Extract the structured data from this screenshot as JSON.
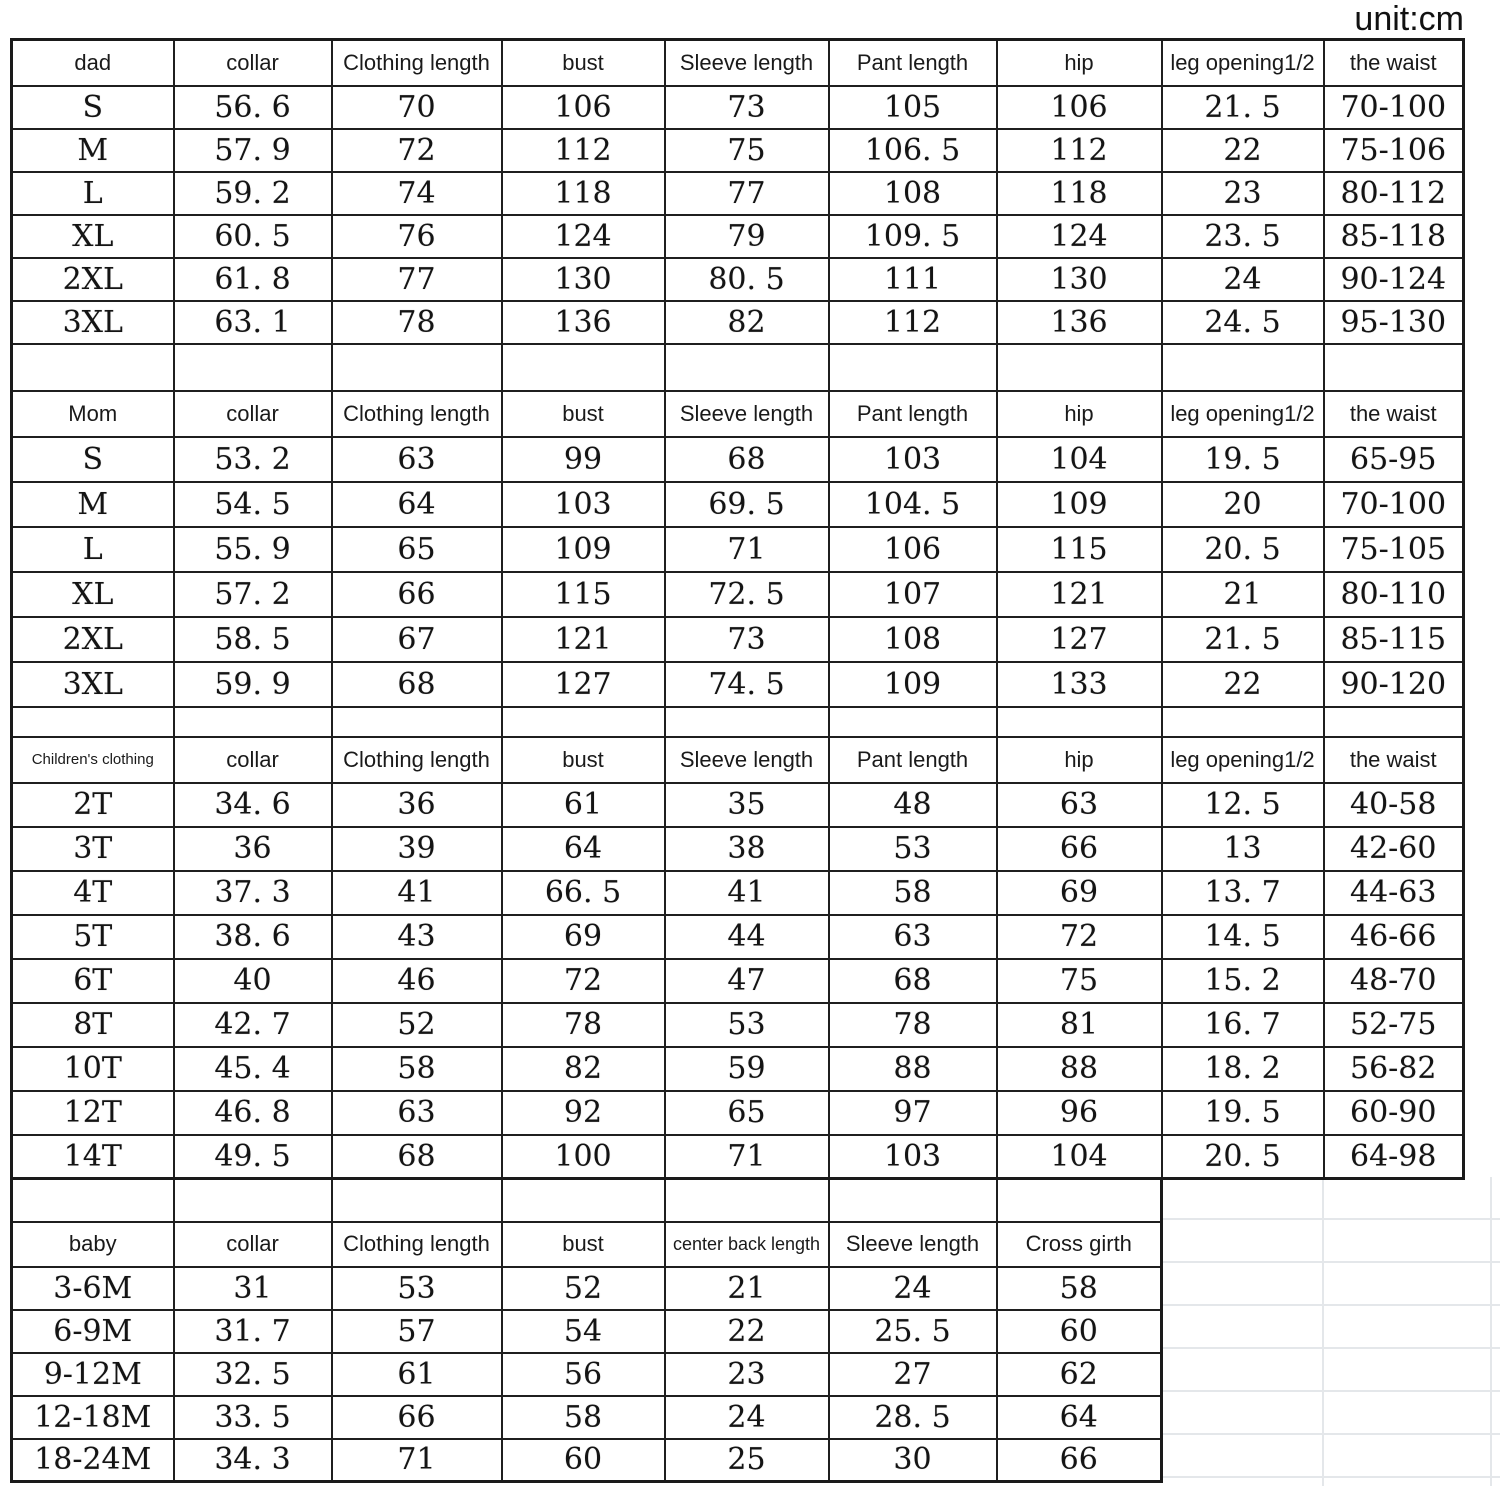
{
  "unit_label": "unit:cm",
  "chart_data": {
    "type": "table",
    "unit": "cm",
    "sections": [
      {
        "name": "dad",
        "columns": [
          "dad",
          "collar",
          "Clothing length",
          "bust",
          "Sleeve length",
          "Pant length",
          "hip",
          "leg opening1/2",
          "the waist"
        ],
        "rows": [
          [
            "S",
            "56. 6",
            "70",
            "106",
            "73",
            "105",
            "106",
            "21. 5",
            "70-100"
          ],
          [
            "M",
            "57. 9",
            "72",
            "112",
            "75",
            "106. 5",
            "112",
            "22",
            "75-106"
          ],
          [
            "L",
            "59. 2",
            "74",
            "118",
            "77",
            "108",
            "118",
            "23",
            "80-112"
          ],
          [
            "XL",
            "60. 5",
            "76",
            "124",
            "79",
            "109. 5",
            "124",
            "23. 5",
            "85-118"
          ],
          [
            "2XL",
            "61. 8",
            "77",
            "130",
            "80. 5",
            "111",
            "130",
            "24",
            "90-124"
          ],
          [
            "3XL",
            "63. 1",
            "78",
            "136",
            "82",
            "112",
            "136",
            "24. 5",
            "95-130"
          ]
        ]
      },
      {
        "name": "Mom",
        "columns": [
          "Mom",
          "collar",
          "Clothing length",
          "bust",
          "Sleeve length",
          "Pant length",
          "hip",
          "leg opening1/2",
          "the waist"
        ],
        "rows": [
          [
            "S",
            "53. 2",
            "63",
            "99",
            "68",
            "103",
            "104",
            "19. 5",
            "65-95"
          ],
          [
            "M",
            "54. 5",
            "64",
            "103",
            "69. 5",
            "104. 5",
            "109",
            "20",
            "70-100"
          ],
          [
            "L",
            "55. 9",
            "65",
            "109",
            "71",
            "106",
            "115",
            "20. 5",
            "75-105"
          ],
          [
            "XL",
            "57. 2",
            "66",
            "115",
            "72. 5",
            "107",
            "121",
            "21",
            "80-110"
          ],
          [
            "2XL",
            "58. 5",
            "67",
            "121",
            "73",
            "108",
            "127",
            "21. 5",
            "85-115"
          ],
          [
            "3XL",
            "59. 9",
            "68",
            "127",
            "74. 5",
            "109",
            "133",
            "22",
            "90-120"
          ]
        ]
      },
      {
        "name": "Children's clothing",
        "columns": [
          "Children's clothing",
          "collar",
          "Clothing length",
          "bust",
          "Sleeve length",
          "Pant length",
          "hip",
          "leg opening1/2",
          "the waist"
        ],
        "rows": [
          [
            "2T",
            "34. 6",
            "36",
            "61",
            "35",
            "48",
            "63",
            "12. 5",
            "40-58"
          ],
          [
            "3T",
            "36",
            "39",
            "64",
            "38",
            "53",
            "66",
            "13",
            "42-60"
          ],
          [
            "4T",
            "37. 3",
            "41",
            "66. 5",
            "41",
            "58",
            "69",
            "13. 7",
            "44-63"
          ],
          [
            "5T",
            "38. 6",
            "43",
            "69",
            "44",
            "63",
            "72",
            "14. 5",
            "46-66"
          ],
          [
            "6T",
            "40",
            "46",
            "72",
            "47",
            "68",
            "75",
            "15. 2",
            "48-70"
          ],
          [
            "8T",
            "42. 7",
            "52",
            "78",
            "53",
            "78",
            "81",
            "16. 7",
            "52-75"
          ],
          [
            "10T",
            "45. 4",
            "58",
            "82",
            "59",
            "88",
            "88",
            "18. 2",
            "56-82"
          ],
          [
            "12T",
            "46. 8",
            "63",
            "92",
            "65",
            "97",
            "96",
            "19. 5",
            "60-90"
          ],
          [
            "14T",
            "49. 5",
            "68",
            "100",
            "71",
            "103",
            "104",
            "20. 5",
            "64-98"
          ]
        ]
      },
      {
        "name": "baby",
        "columns": [
          "baby",
          "collar",
          "Clothing length",
          "bust",
          "center back length",
          "Sleeve length",
          "Cross girth"
        ],
        "rows": [
          [
            "3-6M",
            "31",
            "53",
            "52",
            "21",
            "24",
            "58"
          ],
          [
            "6-9M",
            "31. 7",
            "57",
            "54",
            "22",
            "25. 5",
            "60"
          ],
          [
            "9-12M",
            "32. 5",
            "61",
            "56",
            "23",
            "27",
            "62"
          ],
          [
            "12-18M",
            "33. 5",
            "66",
            "58",
            "24",
            "28. 5",
            "64"
          ],
          [
            "18-24M",
            "34. 3",
            "71",
            "60",
            "25",
            "30",
            "66"
          ]
        ]
      }
    ]
  }
}
